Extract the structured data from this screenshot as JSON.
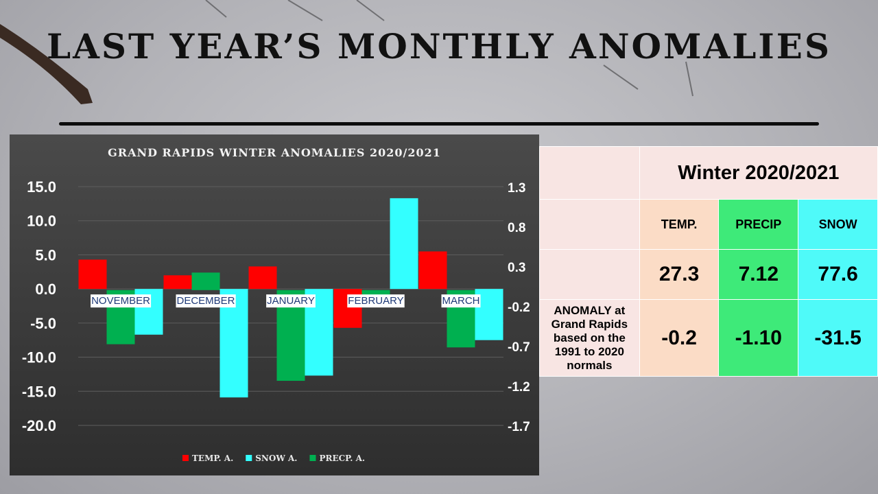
{
  "slide": {
    "title": "LAST YEAR’S MONTHLY ANOMALIES"
  },
  "chart_data": {
    "type": "bar",
    "title": "GRAND RAPIDS WINTER ANOMALIES 2020/2021",
    "categories": [
      "NOVEMBER",
      "DECEMBER",
      "JANUARY",
      "FEBRUARY",
      "MARCH"
    ],
    "series": [
      {
        "name": "TEMP.  A.",
        "axis": "left",
        "color": "#ff0000",
        "values": [
          4.3,
          2.0,
          3.3,
          -5.7,
          5.5
        ]
      },
      {
        "name": "PRECP. A.",
        "axis": "right",
        "color": "#00b050",
        "values": [
          -0.68,
          0.22,
          -1.14,
          -0.13,
          -0.72
        ]
      },
      {
        "name": "SNOW A.",
        "axis": "left",
        "color": "#33ffff",
        "values": [
          -6.7,
          -15.9,
          -12.7,
          13.3,
          -7.5
        ]
      }
    ],
    "legend_order": [
      "TEMP.  A.",
      "SNOW A.",
      "PRECP. A."
    ],
    "y_left": {
      "ticks": [
        "15.0",
        "10.0",
        "5.0",
        "0.0",
        "-5.0",
        "-10.0",
        "-15.0",
        "-20.0"
      ],
      "ylim": [
        -20,
        15
      ]
    },
    "y_right": {
      "ticks": [
        "1.3",
        "0.8",
        "0.3",
        "-0.2",
        "-0.7",
        "-1.2",
        "-1.7"
      ],
      "ylim": [
        -1.7,
        1.3
      ]
    },
    "grid": true,
    "legend_position": "bottom"
  },
  "table": {
    "season": "Winter 2020/2021",
    "headers": {
      "temp": "TEMP.",
      "precip": "PRECIP",
      "snow": "SNOW"
    },
    "values": {
      "temp": "27.3",
      "precip": "7.12",
      "snow": "77.6"
    },
    "anomaly_label": "ANOMALY at Grand Rapids based on the 1991 to 2020 normals",
    "anomalies": {
      "temp": "-0.2",
      "precip": "-1.10",
      "snow": "-31.5"
    }
  },
  "colors": {
    "temp": "#ff0000",
    "snow": "#33ffff",
    "precip": "#00b050",
    "table_temp_bg": "#fbdcc6",
    "table_precip_bg": "#3eea79",
    "table_snow_bg": "#4ffaf9"
  }
}
